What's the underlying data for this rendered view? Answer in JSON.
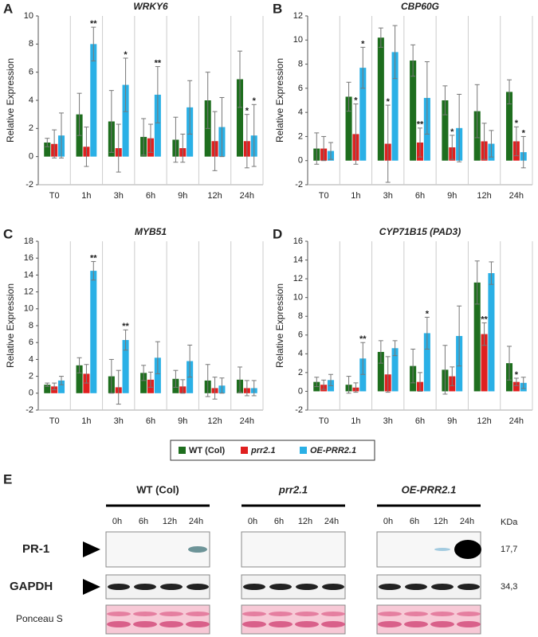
{
  "chart_data": [
    {
      "type": "bar",
      "label": "A",
      "title": "WRKY6",
      "ylabel": "Relative Expression",
      "categories": [
        "T0",
        "1h",
        "3h",
        "6h",
        "9h",
        "12h",
        "24h"
      ],
      "ylim": [
        -2,
        10
      ],
      "yticks": [
        -2,
        0,
        2,
        4,
        6,
        8,
        10
      ],
      "series": [
        {
          "name": "WT (Col)",
          "color": "#1e6e1e",
          "values": [
            1.0,
            3.0,
            2.5,
            1.4,
            1.2,
            4.0,
            5.5
          ],
          "errors": [
            0.3,
            1.5,
            2.2,
            1.3,
            1.6,
            2.0,
            2.0
          ],
          "significance": [
            null,
            null,
            null,
            null,
            null,
            null,
            null
          ]
        },
        {
          "name": "prr2.1",
          "color": "#e02020",
          "values": [
            0.9,
            0.7,
            0.6,
            1.3,
            0.6,
            1.1,
            1.1
          ],
          "errors": [
            1.0,
            1.4,
            1.7,
            1.0,
            1.0,
            2.1,
            1.9
          ],
          "significance": [
            null,
            null,
            null,
            null,
            null,
            null,
            "*"
          ]
        },
        {
          "name": "OE-PRR2.1",
          "color": "#2ab0e6",
          "values": [
            1.5,
            8.0,
            5.1,
            4.4,
            3.5,
            2.1,
            1.5
          ],
          "errors": [
            1.6,
            1.2,
            1.9,
            2.0,
            1.9,
            2.1,
            2.2
          ],
          "significance": [
            null,
            "**",
            "*",
            "**",
            null,
            null,
            "*"
          ]
        }
      ]
    },
    {
      "type": "bar",
      "label": "B",
      "title": "CBP60G",
      "ylabel": "Relative Expression",
      "categories": [
        "T0",
        "1h",
        "3h",
        "6h",
        "9h",
        "12h",
        "24h"
      ],
      "ylim": [
        -2,
        12
      ],
      "yticks": [
        -2,
        0,
        2,
        4,
        6,
        8,
        10,
        12
      ],
      "series": [
        {
          "name": "WT (Col)",
          "color": "#1e6e1e",
          "values": [
            1.0,
            5.3,
            10.2,
            8.3,
            5.0,
            4.1,
            5.7
          ],
          "errors": [
            1.3,
            1.2,
            0.8,
            1.3,
            1.2,
            2.2,
            1.0
          ],
          "significance": [
            null,
            null,
            null,
            null,
            null,
            null,
            null
          ]
        },
        {
          "name": "prr2.1",
          "color": "#e02020",
          "values": [
            1.0,
            2.2,
            1.4,
            1.5,
            1.1,
            1.6,
            1.6
          ],
          "errors": [
            1.0,
            2.5,
            3.2,
            1.2,
            1.0,
            1.5,
            1.2
          ],
          "significance": [
            null,
            "*",
            "*",
            "**",
            "*",
            null,
            "*"
          ]
        },
        {
          "name": "OE-PRR2.1",
          "color": "#2ab0e6",
          "values": [
            0.8,
            7.7,
            9.0,
            5.2,
            2.7,
            1.4,
            0.7
          ],
          "errors": [
            0.7,
            1.7,
            2.2,
            3.0,
            2.8,
            1.1,
            1.3
          ],
          "significance": [
            null,
            "*",
            null,
            null,
            null,
            null,
            "*"
          ]
        }
      ]
    },
    {
      "type": "bar",
      "label": "C",
      "title": "MYB51",
      "ylabel": "Relative Expression",
      "categories": [
        "T0",
        "1h",
        "3h",
        "6h",
        "9h",
        "12h",
        "24h"
      ],
      "ylim": [
        -2,
        18
      ],
      "yticks": [
        -2,
        0,
        2,
        4,
        6,
        8,
        10,
        12,
        14,
        16,
        18
      ],
      "series": [
        {
          "name": "WT (Col)",
          "color": "#1e6e1e",
          "values": [
            1.0,
            3.3,
            2.0,
            2.4,
            1.7,
            1.5,
            1.6
          ],
          "errors": [
            0.2,
            0.9,
            2.0,
            0.9,
            1.0,
            1.9,
            1.5
          ],
          "significance": [
            null,
            null,
            null,
            null,
            null,
            null,
            null
          ]
        },
        {
          "name": "prr2.1",
          "color": "#e02020",
          "values": [
            0.8,
            2.3,
            0.7,
            1.6,
            0.8,
            0.6,
            0.6
          ],
          "errors": [
            0.4,
            1.1,
            2.0,
            0.9,
            0.8,
            1.3,
            0.9
          ],
          "significance": [
            null,
            null,
            null,
            null,
            null,
            null,
            null
          ]
        },
        {
          "name": "OE-PRR2.1",
          "color": "#2ab0e6",
          "values": [
            1.5,
            14.5,
            6.3,
            4.2,
            3.8,
            0.9,
            0.6
          ],
          "errors": [
            0.5,
            1.1,
            1.2,
            1.9,
            1.9,
            0.9,
            0.9
          ],
          "significance": [
            null,
            "**",
            "**",
            null,
            null,
            null,
            null
          ]
        }
      ]
    },
    {
      "type": "bar",
      "label": "D",
      "title": "CYP71B15  (PAD3)",
      "ylabel": "Relative Expression",
      "categories": [
        "T0",
        "1h",
        "3h",
        "6h",
        "9h",
        "12h",
        "24h"
      ],
      "ylim": [
        -2,
        16
      ],
      "yticks": [
        -2,
        0,
        2,
        4,
        6,
        8,
        10,
        12,
        14,
        16
      ],
      "series": [
        {
          "name": "WT (Col)",
          "color": "#1e6e1e",
          "values": [
            1.0,
            0.7,
            4.2,
            2.7,
            2.3,
            11.6,
            3.0
          ],
          "errors": [
            0.5,
            0.9,
            1.2,
            1.8,
            2.6,
            2.3,
            1.8
          ],
          "significance": [
            null,
            null,
            null,
            null,
            null,
            null,
            null
          ]
        },
        {
          "name": "prr2.1",
          "color": "#e02020",
          "values": [
            0.7,
            0.4,
            1.8,
            1.0,
            1.6,
            6.1,
            1.0
          ],
          "errors": [
            0.5,
            0.5,
            1.9,
            1.0,
            1.0,
            1.2,
            0.4
          ],
          "significance": [
            null,
            null,
            null,
            null,
            null,
            "**",
            "*"
          ]
        },
        {
          "name": "OE-PRR2.1",
          "color": "#2ab0e6",
          "values": [
            1.2,
            3.5,
            4.6,
            6.2,
            5.9,
            12.6,
            0.9
          ],
          "errors": [
            0.6,
            1.7,
            0.8,
            1.7,
            3.2,
            1.2,
            0.6
          ],
          "significance": [
            null,
            "**",
            null,
            "*",
            null,
            null,
            null
          ]
        }
      ]
    }
  ],
  "blot": {
    "label": "E",
    "groups": [
      "WT (Col)",
      "prr2.1",
      "OE-PRR2.1"
    ],
    "timepoints": [
      "0h",
      "6h",
      "12h",
      "24h"
    ],
    "rows": [
      "PR-1",
      "GAPDH",
      "Ponceau S"
    ],
    "unit": "KDa",
    "sizes": [
      "17,7",
      "34,3"
    ]
  }
}
